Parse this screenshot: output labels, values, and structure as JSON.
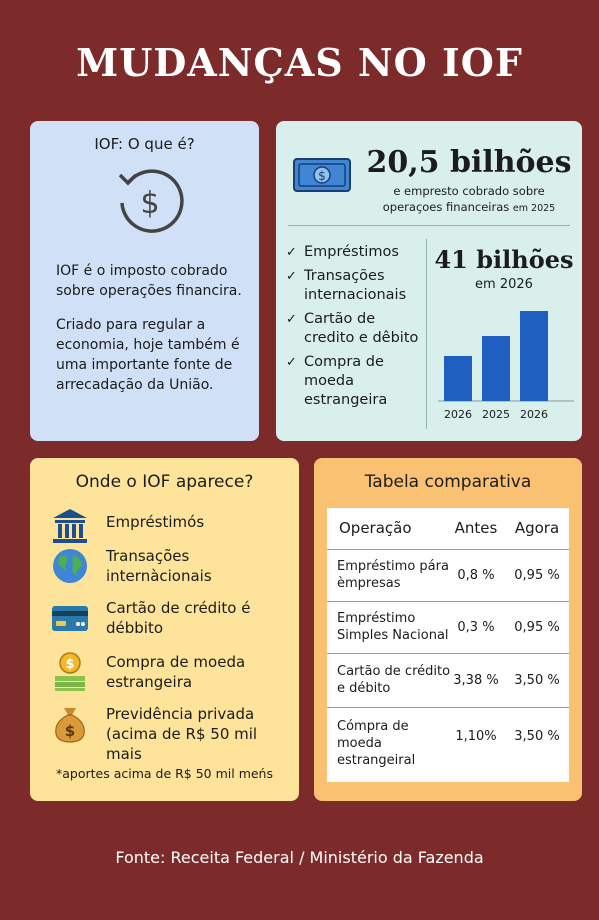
{
  "title": "MUDANÇAS NO IOF",
  "what": {
    "heading": "IOF: O que é?",
    "p1": "IOF é o imposto cobrado sobre operações financira.",
    "p2": "Criado para regular a economia, hoje também é uma importante fonte de arrecadação da União.",
    "icon": "dollar-cycle-icon"
  },
  "numbers": {
    "value_2025": "20,5 bilhões",
    "desc_2025_line": "e empresto cobrado sobre",
    "desc_2025_line2": "operaçoes financeiras",
    "desc_2025_year": "em 2025",
    "checks": [
      "Empréstimos",
      "Transações internacionais",
      "Cartão de credito e dêbito",
      "Compra de moeda estrangeira"
    ],
    "value_2026": "41 bilhões",
    "label_2026": "em 2026",
    "chart_data": {
      "type": "bar",
      "categories": [
        "2026",
        "2025",
        "2026"
      ],
      "values": [
        0.45,
        0.65,
        0.9
      ],
      "color": "#1f5fbf"
    }
  },
  "where": {
    "heading": "Onde o IOF aparece?",
    "items": [
      {
        "label": "Empréstimós",
        "icon": "bank-icon"
      },
      {
        "label": "Transações internàcionais",
        "icon": "globe-icon"
      },
      {
        "label": "Cartão de crédito é débbito",
        "icon": "credit-card-icon"
      },
      {
        "label": "Compra de moeda estrangeira",
        "icon": "coins-icon"
      },
      {
        "label": "Previdência privada (acima de R$ 50 mil mais",
        "icon": "money-bag-icon"
      }
    ],
    "note": "*aportes acima de R$ 50 mil meńs"
  },
  "table": {
    "heading": "Tabela comparativa",
    "headers": [
      "Operação",
      "Antes",
      "Agora"
    ],
    "rows": [
      {
        "op": "Empréstimo pára èmpresas",
        "before": "0,8 %",
        "now": "0,95 %"
      },
      {
        "op": "Empréstimo Simples Nacional",
        "before": "0,3 %",
        "now": "0,95 %"
      },
      {
        "op": "Cartão de crédito e débito",
        "before": "3,38 %",
        "now": "3,50 %"
      },
      {
        "op": "Cómpra de moeda estrangeiral",
        "before": "1,10%",
        "now": "3,50 %"
      }
    ]
  },
  "footer": "Fonte: Receita Federal / Ministério da Fazenda",
  "colors": {
    "background": "#7d2a2a",
    "blue_card": "#cfe0f7",
    "teal_card": "#d8efec",
    "yellow_card": "#fde49a",
    "orange_card": "#fbc173",
    "bar": "#1f5fbf"
  }
}
